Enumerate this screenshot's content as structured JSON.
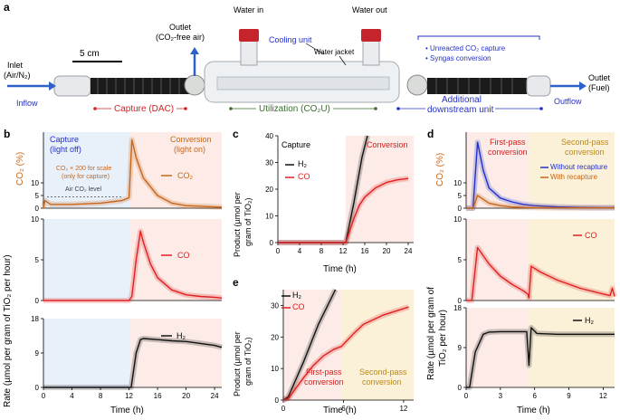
{
  "panel_a": {
    "letter": "a",
    "scale_bar": "5 cm",
    "outlet_top": "Outlet",
    "outlet_top_sub": "(CO₂-free air)",
    "water_in": "Water in",
    "water_out": "Water out",
    "cooling_unit": "Cooling unit",
    "water_jacket": "Water jacket",
    "inlet": "Inlet",
    "inlet_sub": "(Air/N₂)",
    "inflow": "Inflow",
    "capture": "Capture (DAC)",
    "utilization": "Utilization (CO₂U)",
    "additional": "Additional",
    "downstream": "downstream unit",
    "bullet1": "• Unreacted CO₂ capture",
    "bullet2": "• Syngas conversion",
    "outlet_right": "Outlet",
    "outlet_right_sub": "(Fuel)",
    "outflow": "Outflow"
  },
  "panel_b": {
    "letter": "b",
    "capture_label": "Capture",
    "capture_sub": "(light off)",
    "conversion_label": "Conversion",
    "conversion_sub": "(light on)",
    "scale_note1": "CO₂ × 200 for scale",
    "scale_note2": "(only for capture)",
    "air_level": "Air CO₂ level",
    "co2_ylabel": "CO₂ (%)",
    "rate_ylabel": "Rate (µmol per gram of TiO₂ per hour)",
    "xlabel": "Time (h)",
    "legend_co2": "CO₂",
    "legend_co": "CO",
    "legend_h2": "H₂"
  },
  "panel_c": {
    "letter": "c",
    "capture_label": "Capture",
    "conversion_label": "Conversion",
    "ylabel1": "Product (µmol per",
    "ylabel2": "gram of TiO₂)",
    "xlabel": "Time (h)",
    "legend_h2": "H₂",
    "legend_co": "CO"
  },
  "panel_d": {
    "letter": "d",
    "first_pass": "First-pass",
    "first_pass2": "conversion",
    "second_pass": "Second-pass",
    "second_pass2": "conversion",
    "legend_without": "Without recapture",
    "legend_with": "With recapture",
    "co2_ylabel": "CO₂ (%)",
    "rate_ylabel1": "Rate (µmol per gram of",
    "rate_ylabel2": "TiO₂ per hour)",
    "xlabel": "Time (h)",
    "legend_co": "CO",
    "legend_h2": "H₂"
  },
  "panel_e": {
    "letter": "e",
    "legend_h2": "H₂",
    "legend_co": "CO",
    "first_pass": "First-pass",
    "first_pass2": "conversion",
    "second_pass": "Second-pass",
    "second_pass2": "conversion",
    "ylabel1": "Product (µmol per",
    "ylabel2": "gram of TiO₂)",
    "xlabel": "Time (h)"
  },
  "colors": {
    "co2": "#c8661a",
    "co": "#e02020",
    "h2": "#111111",
    "without": "#2030d0",
    "capture_bg": "#e8f0fa",
    "conversion_bg": "#fcebe6",
    "second_bg": "#fbf0d8",
    "blue_text": "#2430c8",
    "red_text": "#d42020",
    "green_text": "#3a6e2a"
  },
  "chart_data": [
    {
      "id": "b-co2",
      "type": "line",
      "ylabel": "CO₂ (%)",
      "xlabel": "Time (h)",
      "xlim": [
        0,
        25
      ],
      "ylim": [
        0,
        30
      ],
      "xticks": [
        0,
        4,
        8,
        12,
        16,
        20,
        24
      ],
      "yticks": [
        0,
        5,
        10
      ],
      "series": [
        {
          "name": "CO₂",
          "x": [
            0,
            0.2,
            1,
            4,
            8,
            11,
            11.9,
            12,
            12.4,
            13,
            14,
            16,
            18,
            20,
            24,
            25
          ],
          "y": [
            0,
            3,
            1.5,
            1.5,
            2,
            3,
            4,
            4.2,
            27,
            20,
            12,
            5,
            2,
            1,
            0.5,
            0.4
          ]
        }
      ]
    },
    {
      "id": "b-co",
      "type": "line",
      "ylabel": "Rate",
      "xlabel": "Time (h)",
      "xlim": [
        0,
        25
      ],
      "ylim": [
        0,
        10
      ],
      "xticks": [
        0,
        4,
        8,
        12,
        16,
        20,
        24
      ],
      "yticks": [
        0,
        5,
        10
      ],
      "series": [
        {
          "name": "CO",
          "x": [
            0,
            12,
            12.4,
            13,
            13.6,
            14,
            15,
            16,
            18,
            20,
            22,
            24,
            25
          ],
          "y": [
            0,
            0,
            0.5,
            5,
            8.5,
            7.2,
            4.5,
            2.8,
            1.3,
            0.7,
            0.5,
            0.4,
            0.3
          ]
        }
      ]
    },
    {
      "id": "b-h2",
      "type": "line",
      "ylabel": "Rate",
      "xlabel": "Time (h)",
      "xlim": [
        0,
        25
      ],
      "ylim": [
        0,
        18
      ],
      "xticks": [
        0,
        4,
        8,
        12,
        16,
        20,
        24
      ],
      "yticks": [
        0,
        9,
        18
      ],
      "series": [
        {
          "name": "H₂",
          "x": [
            0,
            12.3,
            13,
            13.6,
            14,
            16,
            18,
            20,
            22,
            24,
            25
          ],
          "y": [
            0,
            0,
            9,
            12.5,
            12.8,
            12.5,
            12.2,
            12,
            11.5,
            11,
            10.5
          ]
        }
      ]
    },
    {
      "id": "c",
      "type": "line",
      "ylabel": "Product (µmol per gram of TiO₂)",
      "xlabel": "Time (h)",
      "xlim": [
        0,
        25
      ],
      "ylim": [
        0,
        40
      ],
      "xticks": [
        0,
        4,
        8,
        12,
        16,
        20,
        24
      ],
      "yticks": [
        0,
        10,
        20,
        30,
        40
      ],
      "series": [
        {
          "name": "H₂",
          "x": [
            0,
            12.5,
            14,
            15.5,
            16.5
          ],
          "y": [
            0,
            0,
            15,
            32,
            40
          ]
        },
        {
          "name": "CO",
          "x": [
            0,
            12.5,
            14,
            15,
            16,
            18,
            20,
            22,
            24
          ],
          "y": [
            0,
            0,
            9,
            14,
            17,
            20.5,
            22.5,
            23.5,
            24
          ]
        }
      ]
    },
    {
      "id": "d-co2",
      "type": "line",
      "ylabel": "CO₂ (%)",
      "xlabel": "Time (h)",
      "xlim": [
        0,
        13
      ],
      "ylim": [
        0,
        30
      ],
      "xticks": [
        0,
        3,
        6,
        9,
        12
      ],
      "yticks": [
        0,
        5,
        10
      ],
      "series": [
        {
          "name": "Without recapture",
          "x": [
            0,
            0.6,
            1,
            1.5,
            2,
            3,
            4,
            5,
            6,
            8,
            10,
            12,
            13
          ],
          "y": [
            0,
            0,
            26,
            15,
            8,
            4,
            2.5,
            1.5,
            1,
            0.5,
            0.3,
            0.2,
            0.2
          ]
        },
        {
          "name": "With recapture",
          "x": [
            0,
            0.6,
            1,
            1.5,
            2,
            3,
            4,
            5,
            6,
            8,
            10,
            12,
            13
          ],
          "y": [
            0,
            0,
            5,
            3.5,
            2,
            1,
            0.5,
            0.3,
            0.2,
            0.1,
            0.1,
            0.1,
            0.1
          ]
        }
      ]
    },
    {
      "id": "d-co",
      "type": "line",
      "ylabel": "Rate",
      "xlabel": "Time (h)",
      "xlim": [
        0,
        13
      ],
      "ylim": [
        0,
        10
      ],
      "xticks": [
        0,
        3,
        6,
        9,
        12
      ],
      "yticks": [
        0,
        5,
        10
      ],
      "series": [
        {
          "name": "CO",
          "x": [
            0,
            0.5,
            1,
            1.5,
            2,
            3,
            4,
            5,
            5.4,
            5.5,
            5.7,
            6.5,
            8,
            10,
            12,
            12.6,
            12.8,
            13
          ],
          "y": [
            0,
            0,
            6.5,
            5.5,
            4.5,
            3,
            2,
            1.2,
            0.8,
            0.3,
            4.2,
            3.5,
            2.5,
            1.5,
            0.8,
            0.6,
            1.5,
            0.5
          ]
        }
      ]
    },
    {
      "id": "d-h2",
      "type": "line",
      "ylabel": "Rate",
      "xlabel": "Time (h)",
      "xlim": [
        0,
        13
      ],
      "ylim": [
        0,
        18
      ],
      "xticks": [
        0,
        3,
        6,
        9,
        12
      ],
      "yticks": [
        0,
        9,
        18
      ],
      "series": [
        {
          "name": "H₂",
          "x": [
            0,
            0.3,
            0.8,
            1.5,
            2,
            3,
            5.3,
            5.5,
            5.7,
            6.2,
            8,
            10,
            12,
            13
          ],
          "y": [
            0,
            0,
            8,
            12,
            12.5,
            12.6,
            12.6,
            5,
            13.5,
            12.2,
            12,
            12,
            12,
            12
          ]
        }
      ]
    },
    {
      "id": "e",
      "type": "line",
      "ylabel": "Product (µmol per gram of TiO₂)",
      "xlabel": "Time (h)",
      "xlim": [
        0,
        13
      ],
      "ylim": [
        0,
        35
      ],
      "xticks": [
        0,
        6,
        12
      ],
      "yticks": [
        0,
        10,
        20,
        30
      ],
      "series": [
        {
          "name": "H₂",
          "x": [
            0,
            0.5,
            2,
            3.5,
            5.2
          ],
          "y": [
            0,
            1,
            12,
            24,
            35
          ]
        },
        {
          "name": "CO",
          "x": [
            0,
            0.5,
            2,
            3,
            4,
            5,
            5.8,
            7,
            8,
            10,
            12,
            12.5
          ],
          "y": [
            0,
            0.5,
            7,
            11,
            14,
            16,
            17,
            21,
            24,
            27,
            29,
            29.5
          ]
        }
      ]
    }
  ]
}
